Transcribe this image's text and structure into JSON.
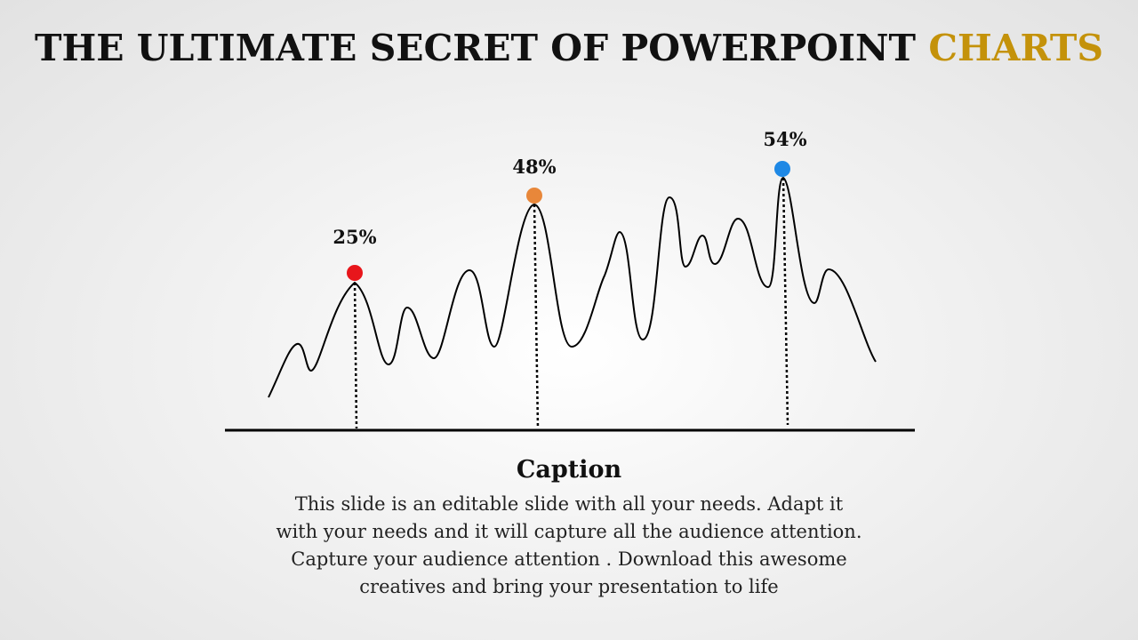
{
  "slide": {
    "title_main": "THE ULTIMATE SECRET OF POWERPOINT",
    "title_accent": "CHARTS",
    "caption_title": "Caption",
    "caption_body": "This slide is an editable slide with all your needs. Adapt it with your needs and it will capture all the audience attention. Capture your audience attention . Download this awesome creatives and bring your presentation to life"
  },
  "colors": {
    "accent": "#c4920a",
    "marker_red": "#e8161b",
    "marker_orange": "#e8873a",
    "marker_blue": "#1e88e5"
  },
  "markers": [
    {
      "label": "25%",
      "color": "#e8161b"
    },
    {
      "label": "48%",
      "color": "#e8873a"
    },
    {
      "label": "54%",
      "color": "#1e88e5"
    }
  ]
}
